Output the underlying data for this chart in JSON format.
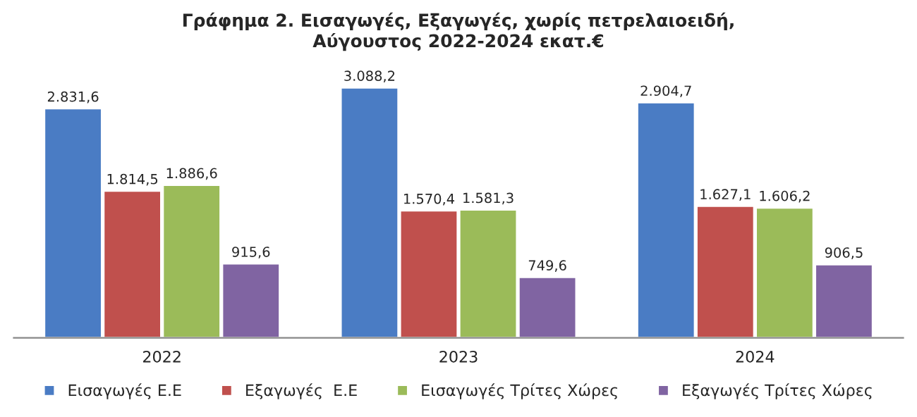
{
  "chart_data": {
    "type": "bar",
    "title": "Γράφημα 2. Εισαγωγές, Εξαγωγές, χωρίς πετρελαιοειδή,\nΑύγουστος 2022-2024 εκατ.€",
    "categories": [
      "2022",
      "2023",
      "2024"
    ],
    "series": [
      {
        "name": "Εισαγωγές Ε.Ε",
        "color": "#4a7cc4",
        "values": [
          2831.6,
          3088.2,
          2904.7
        ],
        "value_labels": [
          "2.831,6",
          "3.088,2",
          "2.904,7"
        ]
      },
      {
        "name": "Εξαγωγές  Ε.Ε",
        "color": "#c0504d",
        "values": [
          1814.5,
          1570.4,
          1627.1
        ],
        "value_labels": [
          "1.814,5",
          "1.570,4",
          "1.627,1"
        ]
      },
      {
        "name": "Εισαγωγές Τρίτες Χώρες",
        "color": "#9bbb59",
        "values": [
          1886.6,
          1581.3,
          1606.2
        ],
        "value_labels": [
          "1.886,6",
          "1.581,3",
          "1.606,2"
        ]
      },
      {
        "name": "Εξαγωγές Τρίτες Χώρες",
        "color": "#8064a2",
        "values": [
          915.6,
          749.6,
          906.5
        ],
        "value_labels": [
          "915,6",
          "749,6",
          "906,5"
        ]
      }
    ],
    "grid": false,
    "legend": "bottom"
  }
}
